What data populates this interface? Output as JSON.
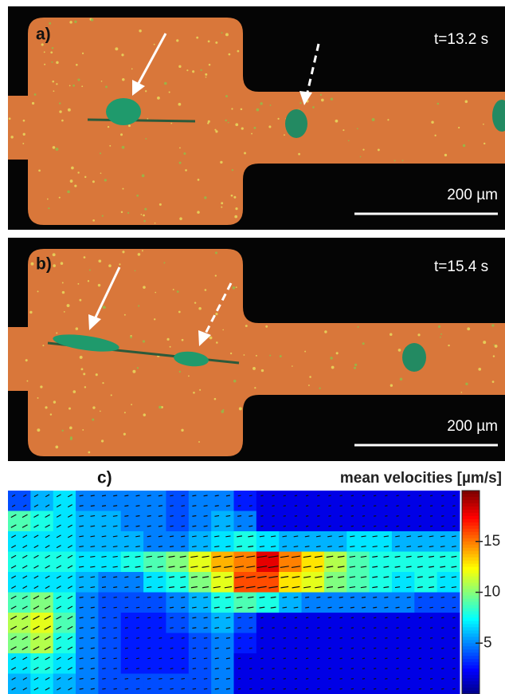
{
  "panels": [
    {
      "label": "a)",
      "time": "t=13.2 s",
      "scale_bar": "200 µm"
    },
    {
      "label": "b)",
      "time": "t=15.4 s",
      "scale_bar": "200 µm"
    }
  ],
  "chart_data": {
    "type": "heatmap",
    "label": "c)",
    "title": "mean velocities [µm/s]",
    "values": [
      [
        4,
        6,
        7,
        5,
        5,
        5,
        5,
        4,
        5,
        5,
        3,
        2,
        2,
        2,
        2,
        2,
        2,
        2,
        2,
        2
      ],
      [
        9,
        8,
        7,
        6,
        6,
        5,
        5,
        4,
        5,
        6,
        5,
        2,
        2,
        2,
        2,
        2,
        2,
        2,
        2,
        2
      ],
      [
        7,
        7,
        7,
        6,
        6,
        6,
        5,
        5,
        6,
        7,
        8,
        7,
        6,
        6,
        6,
        7,
        7,
        6,
        6,
        6
      ],
      [
        8,
        8,
        8,
        7,
        7,
        8,
        9,
        10,
        12,
        14,
        15,
        18,
        15,
        13,
        11,
        9,
        8,
        8,
        8,
        8
      ],
      [
        7,
        7,
        7,
        6,
        5,
        5,
        7,
        8,
        10,
        12,
        16,
        16,
        13,
        12,
        10,
        9,
        8,
        7,
        8,
        7
      ],
      [
        9,
        10,
        8,
        5,
        4,
        4,
        4,
        5,
        6,
        8,
        9,
        8,
        6,
        5,
        5,
        5,
        5,
        5,
        4,
        4
      ],
      [
        11,
        12,
        9,
        5,
        4,
        3,
        3,
        4,
        5,
        6,
        4,
        2,
        2,
        2,
        2,
        2,
        2,
        2,
        2,
        2
      ],
      [
        10,
        11,
        8,
        5,
        4,
        3,
        3,
        3,
        4,
        5,
        3,
        2,
        2,
        2,
        2,
        2,
        2,
        2,
        2,
        2
      ],
      [
        7,
        8,
        7,
        5,
        4,
        3,
        3,
        3,
        4,
        5,
        2,
        2,
        2,
        2,
        2,
        2,
        2,
        2,
        2,
        2
      ],
      [
        6,
        7,
        6,
        5,
        4,
        4,
        4,
        4,
        4,
        5,
        2,
        2,
        2,
        2,
        2,
        2,
        2,
        2,
        2,
        2
      ]
    ],
    "colorbar": {
      "lim": [
        0,
        20
      ],
      "ticks": [
        5,
        10,
        15
      ]
    }
  }
}
